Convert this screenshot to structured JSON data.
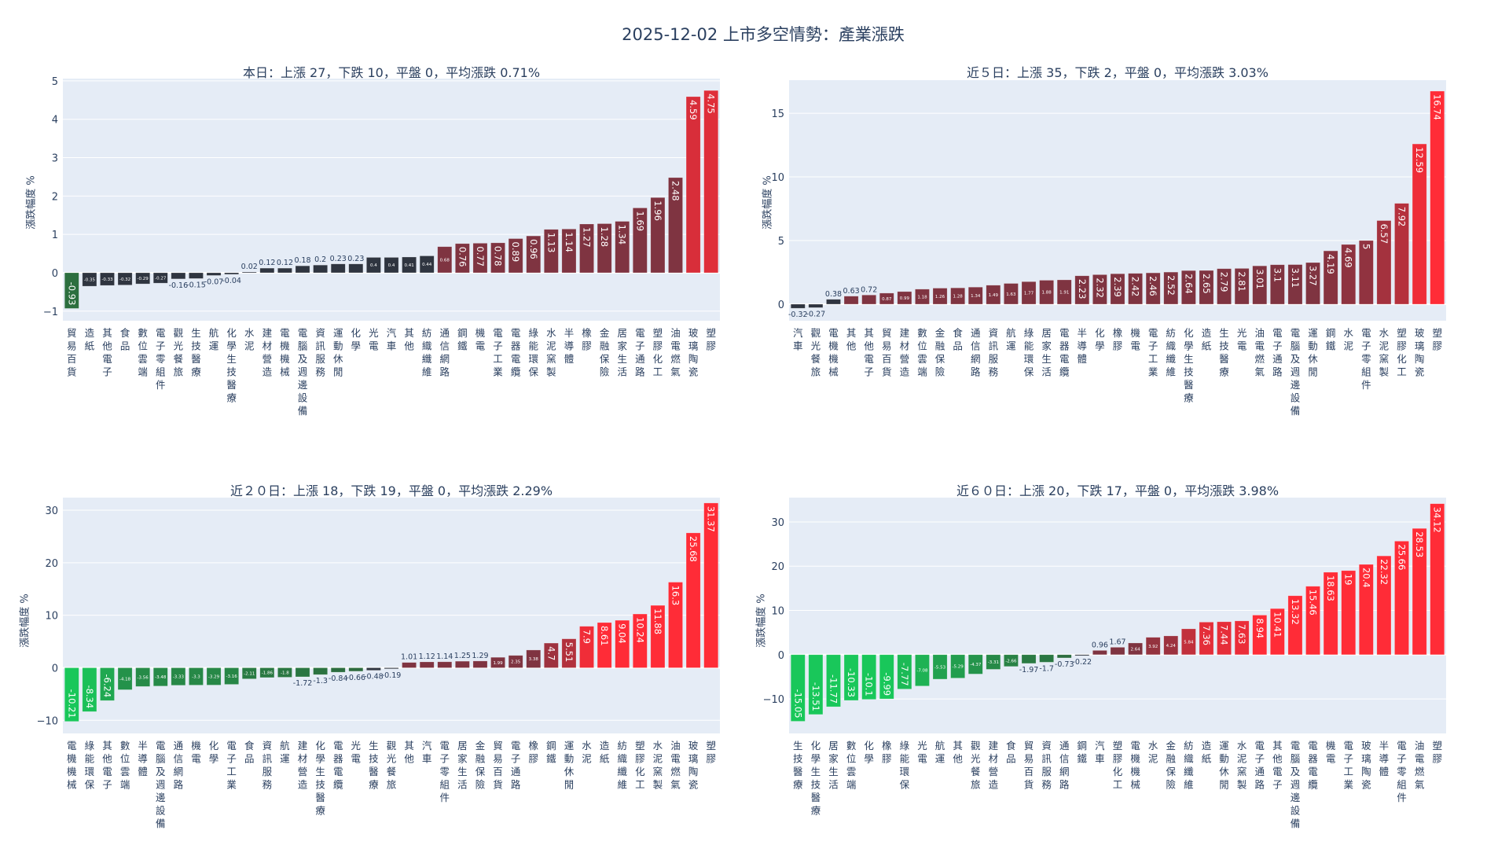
{
  "title": "2025-12-02 上市多空情勢：產業漲跌",
  "colors": {
    "up": "#ff2c37",
    "up_mid": "#7f3441",
    "neutral": "#2f3540",
    "down_dark": "#2d6a3e",
    "down": "#19c75a",
    "plot_bg": "#e5ecf6",
    "grid": "#ffffff"
  },
  "chart_data": [
    {
      "type": "bar",
      "title": "本日：上漲 27，下跌 10，平盤 0，平均漲跌 0.71%",
      "ylabel": "漲跌幅度 %",
      "ylim": [
        -1.25,
        5.06
      ],
      "yticks": [
        -1,
        0,
        1,
        2,
        3,
        4,
        5
      ],
      "grid": true,
      "categories": [
        "貿易百貨",
        "造紙",
        "其他電子",
        "食品",
        "數位雲端",
        "電子零組件",
        "觀光餐旅",
        "生技醫療",
        "航運",
        "化學生技醫療",
        "水泥",
        "建材營造",
        "電機機械",
        "電腦及週邊設備",
        "資訊服務",
        "運動休閒",
        "化學",
        "光電",
        "汽車",
        "其他",
        "紡織纖維",
        "通信網路",
        "鋼鐵",
        "機電",
        "電子工業",
        "電器電纜",
        "綠能環保",
        "水泥窯製",
        "半導體",
        "橡膠",
        "金融保險",
        "居家生活",
        "電子通路",
        "塑膠化工",
        "油電燃氣",
        "玻璃陶瓷",
        "塑膠"
      ],
      "values": [
        -0.93,
        -0.35,
        -0.33,
        -0.32,
        -0.29,
        -0.27,
        -0.16,
        -0.15,
        -0.07,
        -0.04,
        0.02,
        0.12,
        0.12,
        0.18,
        0.2,
        0.23,
        0.23,
        0.4,
        0.4,
        0.41,
        0.44,
        0.68,
        0.76,
        0.77,
        0.78,
        0.89,
        0.96,
        1.13,
        1.14,
        1.27,
        1.28,
        1.34,
        1.69,
        1.96,
        2.48,
        4.59,
        4.75
      ]
    },
    {
      "type": "bar",
      "title": "近５日：上漲 35，下跌 2，平盤 0，平均漲跌 3.03%",
      "ylabel": "漲跌幅度 %",
      "ylim": [
        -1.3,
        17.6
      ],
      "yticks": [
        0,
        5,
        10,
        15
      ],
      "grid": true,
      "categories": [
        "汽車",
        "觀光餐旅",
        "電機機械",
        "其他",
        "其他電子",
        "貿易百貨",
        "建材營造",
        "數位雲端",
        "金融保險",
        "食品",
        "通信網路",
        "資訊服務",
        "航運",
        "綠能環保",
        "居家生活",
        "電器電纜",
        "半導體",
        "化學",
        "橡膠",
        "機電",
        "電子工業",
        "紡織纖維",
        "化學生技醫療",
        "造紙",
        "生技醫療",
        "光電",
        "油電燃氣",
        "電子通路",
        "電腦及週邊設備",
        "運動休閒",
        "鋼鐵",
        "水泥",
        "電子零組件",
        "水泥窯製",
        "塑膠化工",
        "玻璃陶瓷",
        "塑膠"
      ],
      "values": [
        -0.32,
        -0.27,
        0.38,
        0.63,
        0.72,
        0.87,
        0.99,
        1.18,
        1.26,
        1.28,
        1.34,
        1.49,
        1.63,
        1.77,
        1.88,
        1.91,
        2.23,
        2.32,
        2.39,
        2.42,
        2.46,
        2.52,
        2.64,
        2.65,
        2.79,
        2.81,
        3.01,
        3.1,
        3.11,
        3.27,
        4.19,
        4.69,
        5,
        6.57,
        7.92,
        12.59,
        16.74
      ]
    },
    {
      "type": "bar",
      "title": "近２０日：上漲 18，下跌 19，平盤 0，平均漲跌 2.29%",
      "ylabel": "漲跌幅度 %",
      "ylim": [
        -12.5,
        32.4
      ],
      "yticks": [
        -10,
        0,
        10,
        20,
        30
      ],
      "grid": true,
      "categories": [
        "電機機械",
        "綠能環保",
        "其他電子",
        "數位雲端",
        "半導體",
        "電腦及週邊設備",
        "通信網路",
        "機電",
        "化學",
        "電子工業",
        "食品",
        "資訊服務",
        "航運",
        "建材營造",
        "化學生技醫療",
        "電器電纜",
        "光電",
        "生技醫療",
        "觀光餐旅",
        "其他",
        "汽車",
        "電子零組件",
        "居家生活",
        "金融保險",
        "貿易百貨",
        "電子通路",
        "橡膠",
        "鋼鐵",
        "運動休閒",
        "水泥",
        "造紙",
        "紡織纖維",
        "塑膠化工",
        "水泥窯製",
        "油電燃氣",
        "玻璃陶瓷",
        "塑膠"
      ],
      "values": [
        -10.21,
        -8.34,
        -6.24,
        -4.18,
        -3.56,
        -3.48,
        -3.33,
        -3.3,
        -3.29,
        -3.16,
        -2.11,
        -1.86,
        -1.8,
        -1.72,
        -1.3,
        -0.84,
        -0.66,
        -0.48,
        -0.19,
        1.01,
        1.12,
        1.14,
        1.25,
        1.29,
        1.99,
        2.35,
        3.38,
        4.7,
        5.51,
        7.9,
        8.61,
        9.04,
        10.24,
        11.88,
        16.3,
        25.68,
        31.37
      ]
    },
    {
      "type": "bar",
      "title": "近６０日：上漲 20，下跌 17，平盤 0，平均漲跌 3.98%",
      "ylabel": "漲跌幅度 %",
      "ylim": [
        -17.8,
        35.5
      ],
      "yticks": [
        -10,
        0,
        10,
        20,
        30
      ],
      "grid": true,
      "categories": [
        "生技醫療",
        "化學生技醫療",
        "居家生活",
        "數位雲端",
        "化學",
        "橡膠",
        "綠能環保",
        "光電",
        "航運",
        "其他",
        "觀光餐旅",
        "建材營造",
        "食品",
        "貿易百貨",
        "資訊服務",
        "通信網路",
        "鋼鐵",
        "汽車",
        "塑膠化工",
        "電機機械",
        "水泥",
        "金融保險",
        "紡織纖維",
        "造紙",
        "運動休閒",
        "水泥窯製",
        "電子通路",
        "其他電子",
        "電腦及週邊設備",
        "電器電纜",
        "機電",
        "電子工業",
        "玻璃陶瓷",
        "半導體",
        "電子零組件",
        "油電燃氣",
        "塑膠"
      ],
      "values": [
        -15.05,
        -13.51,
        -11.77,
        -10.33,
        -10.1,
        -9.99,
        -7.77,
        -7.08,
        -5.53,
        -5.29,
        -4.37,
        -3.31,
        -2.66,
        -1.97,
        -1.7,
        -0.73,
        -0.22,
        0.96,
        1.67,
        2.64,
        3.92,
        4.24,
        5.84,
        7.36,
        7.44,
        7.63,
        8.94,
        10.41,
        13.32,
        15.46,
        18.63,
        19,
        20.4,
        22.32,
        25.66,
        28.53,
        34.12
      ]
    }
  ]
}
